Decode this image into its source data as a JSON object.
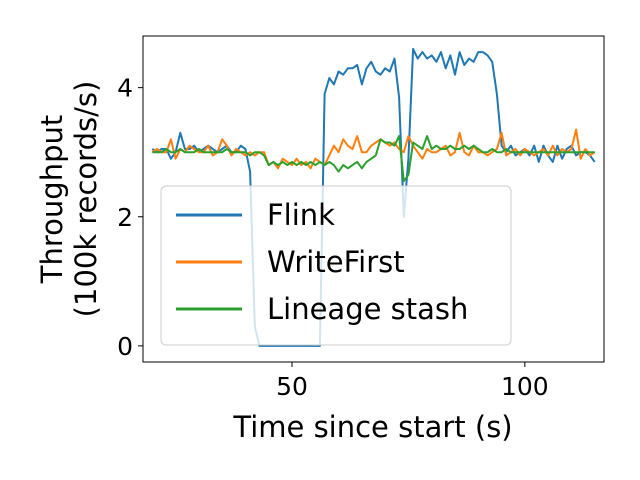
{
  "chart_data": {
    "type": "line",
    "title": "",
    "xlabel": "Time since start (s)",
    "ylabel_lines": [
      "Throughput",
      "(100k records/s)"
    ],
    "xlim": [
      18,
      117
    ],
    "ylim": [
      -0.25,
      4.8
    ],
    "xticks": [
      50,
      100
    ],
    "yticks": [
      0,
      2,
      4
    ],
    "grid": false,
    "legend_position": "lower-left",
    "series": [
      {
        "name": "Flink",
        "color": "#1f77b4",
        "x": [
          20,
          21,
          22,
          23,
          24,
          25,
          26,
          27,
          28,
          29,
          30,
          31,
          32,
          33,
          34,
          35,
          36,
          37,
          38,
          39,
          40,
          41,
          42,
          43,
          44,
          45,
          46,
          47,
          48,
          49,
          50,
          51,
          52,
          53,
          54,
          55,
          56,
          57,
          58,
          59,
          60,
          61,
          62,
          63,
          64,
          65,
          66,
          67,
          68,
          69,
          70,
          71,
          72,
          73,
          74,
          75,
          76,
          77,
          78,
          79,
          80,
          81,
          82,
          83,
          84,
          85,
          86,
          87,
          88,
          89,
          90,
          91,
          92,
          93,
          94,
          95,
          96,
          97,
          98,
          99,
          100,
          101,
          102,
          103,
          104,
          105,
          106,
          107,
          108,
          109,
          110,
          111,
          112,
          113,
          114,
          115
        ],
        "y": [
          3.05,
          3.0,
          3.05,
          3.05,
          2.9,
          3.0,
          3.3,
          3.05,
          3.05,
          3.1,
          3.0,
          3.05,
          3.1,
          3.05,
          3.0,
          3.05,
          3.1,
          3.0,
          3.0,
          3.1,
          3.05,
          2.7,
          0.3,
          0.0,
          0.0,
          0.0,
          0.0,
          0.0,
          0.0,
          0.0,
          0.0,
          0.0,
          0.0,
          0.0,
          0.0,
          0.0,
          0.0,
          3.9,
          4.15,
          4.05,
          4.25,
          4.2,
          4.3,
          4.3,
          4.35,
          4.05,
          4.3,
          4.4,
          4.25,
          4.2,
          4.3,
          4.25,
          4.45,
          3.85,
          2.0,
          2.9,
          4.6,
          4.45,
          4.55,
          4.45,
          4.5,
          4.4,
          4.55,
          4.3,
          4.5,
          4.2,
          4.55,
          4.35,
          4.45,
          4.4,
          4.55,
          4.55,
          4.5,
          4.4,
          3.9,
          3.1,
          3.0,
          3.1,
          2.95,
          3.0,
          3.05,
          2.95,
          3.1,
          2.85,
          3.1,
          2.95,
          2.85,
          3.1,
          2.9,
          3.05,
          3.1,
          2.95,
          3.0,
          3.0,
          2.95,
          2.85
        ]
      },
      {
        "name": "WriteFirst",
        "color": "#ff7f0e",
        "x": [
          20,
          21,
          22,
          23,
          24,
          25,
          26,
          27,
          28,
          29,
          30,
          31,
          32,
          33,
          34,
          35,
          36,
          37,
          38,
          39,
          40,
          41,
          42,
          43,
          44,
          45,
          46,
          47,
          48,
          49,
          50,
          51,
          52,
          53,
          54,
          55,
          56,
          57,
          58,
          59,
          60,
          61,
          62,
          63,
          64,
          65,
          66,
          67,
          68,
          69,
          70,
          71,
          72,
          73,
          74,
          75,
          76,
          77,
          78,
          79,
          80,
          81,
          82,
          83,
          84,
          85,
          86,
          87,
          88,
          89,
          90,
          91,
          92,
          93,
          94,
          95,
          96,
          97,
          98,
          99,
          100,
          101,
          102,
          103,
          104,
          105,
          106,
          107,
          108,
          109,
          110,
          111,
          112,
          113,
          114,
          115
        ],
        "y": [
          3.0,
          3.05,
          3.0,
          3.0,
          3.2,
          2.9,
          3.05,
          3.0,
          3.1,
          3.05,
          3.0,
          3.0,
          3.1,
          2.95,
          3.0,
          3.2,
          3.1,
          2.95,
          3.05,
          3.0,
          2.95,
          3.0,
          2.95,
          3.0,
          3.0,
          2.8,
          2.85,
          2.75,
          2.9,
          2.85,
          2.8,
          2.9,
          2.8,
          2.85,
          2.75,
          2.9,
          2.85,
          2.8,
          2.95,
          3.1,
          3.0,
          3.2,
          3.1,
          3.05,
          3.25,
          3.0,
          3.0,
          3.1,
          3.15,
          3.2,
          3.15,
          3.1,
          3.15,
          3.05,
          3.0,
          3.25,
          3.1,
          3.0,
          2.9,
          3.05,
          3.0,
          3.0,
          3.05,
          3.1,
          2.95,
          3.0,
          3.3,
          3.0,
          2.95,
          3.1,
          3.0,
          3.0,
          2.95,
          3.0,
          3.05,
          3.3,
          2.95,
          3.0,
          3.05,
          2.95,
          3.05,
          3.0,
          2.95,
          3.0,
          3.05,
          2.95,
          3.1,
          2.95,
          3.05,
          3.0,
          3.05,
          3.35,
          2.9,
          3.05,
          2.95,
          3.0
        ]
      },
      {
        "name": "Lineage stash",
        "color": "#2ca02c",
        "x": [
          20,
          21,
          22,
          23,
          24,
          25,
          26,
          27,
          28,
          29,
          30,
          31,
          32,
          33,
          34,
          35,
          36,
          37,
          38,
          39,
          40,
          41,
          42,
          43,
          44,
          45,
          46,
          47,
          48,
          49,
          50,
          51,
          52,
          53,
          54,
          55,
          56,
          57,
          58,
          59,
          60,
          61,
          62,
          63,
          64,
          65,
          66,
          67,
          68,
          69,
          70,
          71,
          72,
          73,
          74,
          75,
          76,
          77,
          78,
          79,
          80,
          81,
          82,
          83,
          84,
          85,
          86,
          87,
          88,
          89,
          90,
          91,
          92,
          93,
          94,
          95,
          96,
          97,
          98,
          99,
          100,
          101,
          102,
          103,
          104,
          105,
          106,
          107,
          108,
          109,
          110,
          111,
          112,
          113,
          114,
          115
        ],
        "y": [
          3.0,
          3.0,
          3.0,
          3.05,
          3.0,
          3.0,
          3.05,
          3.0,
          3.0,
          3.0,
          3.05,
          3.0,
          3.0,
          3.0,
          3.0,
          3.0,
          3.05,
          3.0,
          3.0,
          3.0,
          3.0,
          2.95,
          3.0,
          3.0,
          2.95,
          2.8,
          2.85,
          2.8,
          2.85,
          2.8,
          2.85,
          2.8,
          2.85,
          2.8,
          2.85,
          2.8,
          2.85,
          2.8,
          2.85,
          2.8,
          2.7,
          2.8,
          2.75,
          2.8,
          2.85,
          2.75,
          2.85,
          2.9,
          2.95,
          3.2,
          3.15,
          3.15,
          3.1,
          3.25,
          2.55,
          2.65,
          3.15,
          3.1,
          3.05,
          3.25,
          3.05,
          3.1,
          3.05,
          3.05,
          3.1,
          3.05,
          3.05,
          3.1,
          3.05,
          3.1,
          3.05,
          3.0,
          3.0,
          3.05,
          3.0,
          3.0,
          3.05,
          3.0,
          3.0,
          3.0,
          3.0,
          3.0,
          3.0,
          3.0,
          3.0,
          3.0,
          3.0,
          3.0,
          3.0,
          3.0,
          3.0,
          3.0,
          3.0,
          3.0,
          3.0,
          3.0
        ]
      }
    ]
  }
}
